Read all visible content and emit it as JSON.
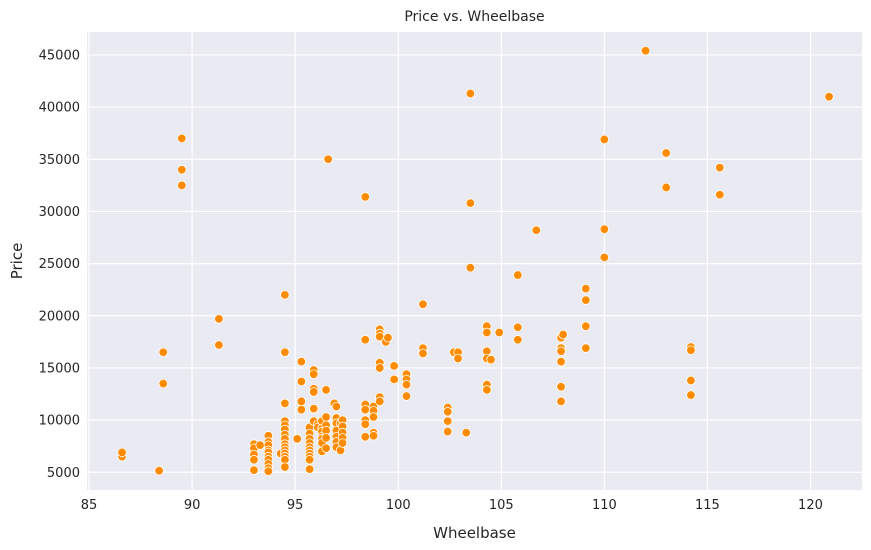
{
  "chart_data": {
    "type": "scatter",
    "title": "Price vs. Wheelbase",
    "xlabel": "Wheelbase",
    "ylabel": "Price",
    "xlim": [
      84.9,
      122.5
    ],
    "ylim": [
      3300,
      47200
    ],
    "xticks": [
      85,
      90,
      95,
      100,
      105,
      110,
      115,
      120
    ],
    "yticks": [
      5000,
      10000,
      15000,
      20000,
      25000,
      30000,
      35000,
      40000,
      45000
    ],
    "grid": true,
    "colors": {
      "background": "#eaeaf2",
      "grid": "#ffffff",
      "marker": "#ff8c00",
      "marker_edge": "#ffffff"
    },
    "points": [
      [
        86.6,
        6500
      ],
      [
        86.6,
        6900
      ],
      [
        88.4,
        5150
      ],
      [
        88.6,
        13500
      ],
      [
        88.6,
        16500
      ],
      [
        89.5,
        37000
      ],
      [
        89.5,
        34000
      ],
      [
        89.5,
        32500
      ],
      [
        91.3,
        19700
      ],
      [
        91.3,
        17200
      ],
      [
        93.0,
        7700
      ],
      [
        93.0,
        7300
      ],
      [
        93.0,
        6700
      ],
      [
        93.0,
        6200
      ],
      [
        93.0,
        5200
      ],
      [
        93.3,
        7600
      ],
      [
        93.7,
        8500
      ],
      [
        93.7,
        7900
      ],
      [
        93.7,
        7600
      ],
      [
        93.7,
        7100
      ],
      [
        93.7,
        6900
      ],
      [
        93.7,
        6500
      ],
      [
        93.7,
        6200
      ],
      [
        93.7,
        5800
      ],
      [
        93.7,
        5400
      ],
      [
        93.7,
        5100
      ],
      [
        94.3,
        6800
      ],
      [
        94.5,
        22000
      ],
      [
        94.5,
        16500
      ],
      [
        94.5,
        11600
      ],
      [
        94.5,
        9900
      ],
      [
        94.5,
        9500
      ],
      [
        94.5,
        9100
      ],
      [
        94.5,
        8600
      ],
      [
        94.5,
        8200
      ],
      [
        94.5,
        7700
      ],
      [
        94.5,
        7400
      ],
      [
        94.5,
        7100
      ],
      [
        94.5,
        6800
      ],
      [
        94.5,
        6500
      ],
      [
        94.5,
        6200
      ],
      [
        94.5,
        5500
      ],
      [
        95.1,
        8200
      ],
      [
        95.3,
        15600
      ],
      [
        95.3,
        13700
      ],
      [
        95.3,
        11800
      ],
      [
        95.3,
        11000
      ],
      [
        95.7,
        9300
      ],
      [
        95.7,
        8700
      ],
      [
        95.7,
        8200
      ],
      [
        95.7,
        7800
      ],
      [
        95.7,
        7400
      ],
      [
        95.7,
        7100
      ],
      [
        95.7,
        6800
      ],
      [
        95.7,
        6500
      ],
      [
        95.7,
        6200
      ],
      [
        95.7,
        5300
      ],
      [
        95.9,
        14800
      ],
      [
        95.9,
        14400
      ],
      [
        95.9,
        13000
      ],
      [
        95.9,
        12700
      ],
      [
        95.9,
        11100
      ],
      [
        95.9,
        9900
      ],
      [
        96.1,
        9600
      ],
      [
        96.1,
        9300
      ],
      [
        96.3,
        9900
      ],
      [
        96.3,
        9200
      ],
      [
        96.3,
        8900
      ],
      [
        96.3,
        8400
      ],
      [
        96.3,
        8200
      ],
      [
        96.3,
        7800
      ],
      [
        96.3,
        7000
      ],
      [
        96.5,
        12900
      ],
      [
        96.5,
        10300
      ],
      [
        96.5,
        9500
      ],
      [
        96.5,
        9000
      ],
      [
        96.5,
        8300
      ],
      [
        96.5,
        7300
      ],
      [
        96.6,
        35000
      ],
      [
        96.9,
        11600
      ],
      [
        97.0,
        11300
      ],
      [
        97.0,
        10200
      ],
      [
        97.0,
        9700
      ],
      [
        97.0,
        9000
      ],
      [
        97.0,
        8400
      ],
      [
        97.0,
        7900
      ],
      [
        97.0,
        7400
      ],
      [
        97.2,
        9700
      ],
      [
        97.2,
        7100
      ],
      [
        97.3,
        10000
      ],
      [
        97.3,
        9400
      ],
      [
        97.3,
        8800
      ],
      [
        97.3,
        8300
      ],
      [
        97.3,
        7800
      ],
      [
        98.4,
        31400
      ],
      [
        98.4,
        17700
      ],
      [
        98.4,
        11500
      ],
      [
        98.4,
        11000
      ],
      [
        98.4,
        10000
      ],
      [
        98.4,
        9600
      ],
      [
        98.4,
        8400
      ],
      [
        98.8,
        11300
      ],
      [
        98.8,
        10900
      ],
      [
        98.8,
        10300
      ],
      [
        98.8,
        8800
      ],
      [
        98.8,
        8500
      ],
      [
        99.1,
        18700
      ],
      [
        99.1,
        18300
      ],
      [
        99.1,
        18000
      ],
      [
        99.1,
        15500
      ],
      [
        99.1,
        15000
      ],
      [
        99.1,
        12200
      ],
      [
        99.1,
        11800
      ],
      [
        99.4,
        17500
      ],
      [
        99.5,
        17900
      ],
      [
        99.8,
        15200
      ],
      [
        99.8,
        13900
      ],
      [
        100.4,
        14400
      ],
      [
        100.4,
        13900
      ],
      [
        100.4,
        13400
      ],
      [
        100.4,
        12300
      ],
      [
        101.2,
        21100
      ],
      [
        101.2,
        16900
      ],
      [
        101.2,
        16400
      ],
      [
        102.4,
        11200
      ],
      [
        102.4,
        10800
      ],
      [
        102.4,
        9900
      ],
      [
        102.4,
        8900
      ],
      [
        102.7,
        16500
      ],
      [
        102.9,
        16500
      ],
      [
        102.9,
        15900
      ],
      [
        103.3,
        8800
      ],
      [
        103.5,
        41300
      ],
      [
        103.5,
        30800
      ],
      [
        103.5,
        24600
      ],
      [
        104.3,
        19000
      ],
      [
        104.3,
        18400
      ],
      [
        104.3,
        16600
      ],
      [
        104.3,
        15900
      ],
      [
        104.3,
        13400
      ],
      [
        104.3,
        12900
      ],
      [
        104.5,
        15800
      ],
      [
        104.9,
        18400
      ],
      [
        105.8,
        23900
      ],
      [
        105.8,
        18900
      ],
      [
        105.8,
        17700
      ],
      [
        106.7,
        28200
      ],
      [
        107.9,
        18000
      ],
      [
        107.9,
        17900
      ],
      [
        107.9,
        16900
      ],
      [
        107.9,
        16600
      ],
      [
        107.9,
        15600
      ],
      [
        107.9,
        13200
      ],
      [
        107.9,
        11800
      ],
      [
        108.0,
        18200
      ],
      [
        109.1,
        22600
      ],
      [
        109.1,
        21500
      ],
      [
        109.1,
        19000
      ],
      [
        109.1,
        16900
      ],
      [
        110.0,
        36900
      ],
      [
        110.0,
        28300
      ],
      [
        110.0,
        25600
      ],
      [
        112.0,
        45400
      ],
      [
        113.0,
        35600
      ],
      [
        113.0,
        32300
      ],
      [
        114.2,
        17000
      ],
      [
        114.2,
        16700
      ],
      [
        114.2,
        13800
      ],
      [
        114.2,
        12400
      ],
      [
        115.6,
        34200
      ],
      [
        115.6,
        31600
      ],
      [
        120.9,
        41000
      ]
    ]
  }
}
